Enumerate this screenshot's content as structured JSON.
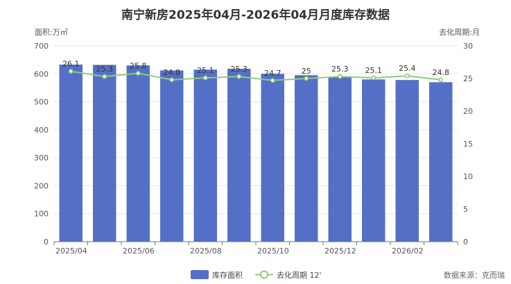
{
  "chart_data": {
    "type": "bar",
    "title": "南宁新房2025年04月-2026年04月月度库存数据",
    "left_axis_title": "面积:万㎡",
    "right_axis_title": "去化周期:月",
    "categories": [
      "2025/04",
      "2025/05",
      "2025/06",
      "2025/07",
      "2025/08",
      "2025/09",
      "2025/10",
      "2025/11",
      "2025/12",
      "2026/01",
      "2026/02",
      "2026/03"
    ],
    "x_tick_labels": [
      "2025/04",
      "2025/06",
      "2025/08",
      "2025/10",
      "2025/12",
      "2026/02"
    ],
    "y_left": {
      "min": 0,
      "max": 700,
      "ticks": [
        0,
        100,
        200,
        300,
        400,
        500,
        600,
        700
      ]
    },
    "y_right": {
      "min": 0,
      "max": 30,
      "ticks": [
        0,
        5,
        10,
        15,
        20,
        25,
        30
      ]
    },
    "grid": true,
    "legend_position": "bottom-center",
    "series": [
      {
        "name": "库存面积",
        "type": "bar",
        "axis": "left",
        "color": "#5470c6",
        "values": [
          633,
          632,
          630,
          612,
          615,
          618,
          600,
          595,
          588,
          580,
          578,
          570
        ]
      },
      {
        "name": "去化周期 12'",
        "type": "line",
        "axis": "right",
        "color": "#91cc75",
        "values": [
          26.1,
          25.3,
          25.8,
          24.8,
          25.1,
          25.3,
          24.7,
          25,
          25.3,
          25.1,
          25.4,
          24.8
        ],
        "labels": [
          "26.1",
          "25.3",
          "25.8",
          "24.8",
          "25.1",
          "25.3",
          "24.7",
          "25",
          "25.3",
          "25.1",
          "25.4",
          "24.8"
        ]
      }
    ],
    "source": "数据来源：克而瑞"
  }
}
